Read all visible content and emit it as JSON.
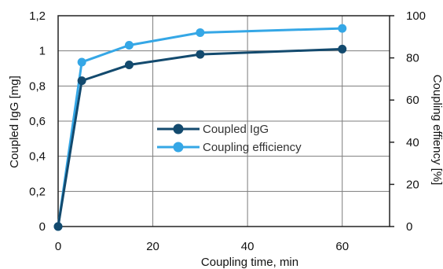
{
  "chart_data": {
    "type": "line",
    "xlabel": "Coupling time, min",
    "ylabel_left": "Coupled IgG [mg]",
    "ylabel_right": "Coupling effiency [%]",
    "xlim": [
      0,
      70
    ],
    "ylim_left": [
      0,
      1.2
    ],
    "ylim_right": [
      0,
      100
    ],
    "x_ticks": [
      "0",
      "20",
      "40",
      "60"
    ],
    "y_left_ticks": [
      "0",
      "0,2",
      "0,4",
      "0,6",
      "0,8",
      "1",
      "1,2"
    ],
    "y_right_ticks": [
      "0",
      "20",
      "40",
      "60",
      "80",
      "100"
    ],
    "grid": true,
    "legend_position": "center",
    "series": [
      {
        "name": "Coupled IgG",
        "axis": "left",
        "color": "#134a6e",
        "x": [
          0,
          5,
          15,
          30,
          60
        ],
        "values": [
          0,
          0.83,
          0.92,
          0.98,
          1.01
        ]
      },
      {
        "name": "Coupling efficiency",
        "axis": "right",
        "color": "#35a7e6",
        "x": [
          0,
          5,
          15,
          30,
          60
        ],
        "values": [
          0,
          78,
          86,
          92,
          94
        ]
      }
    ]
  }
}
